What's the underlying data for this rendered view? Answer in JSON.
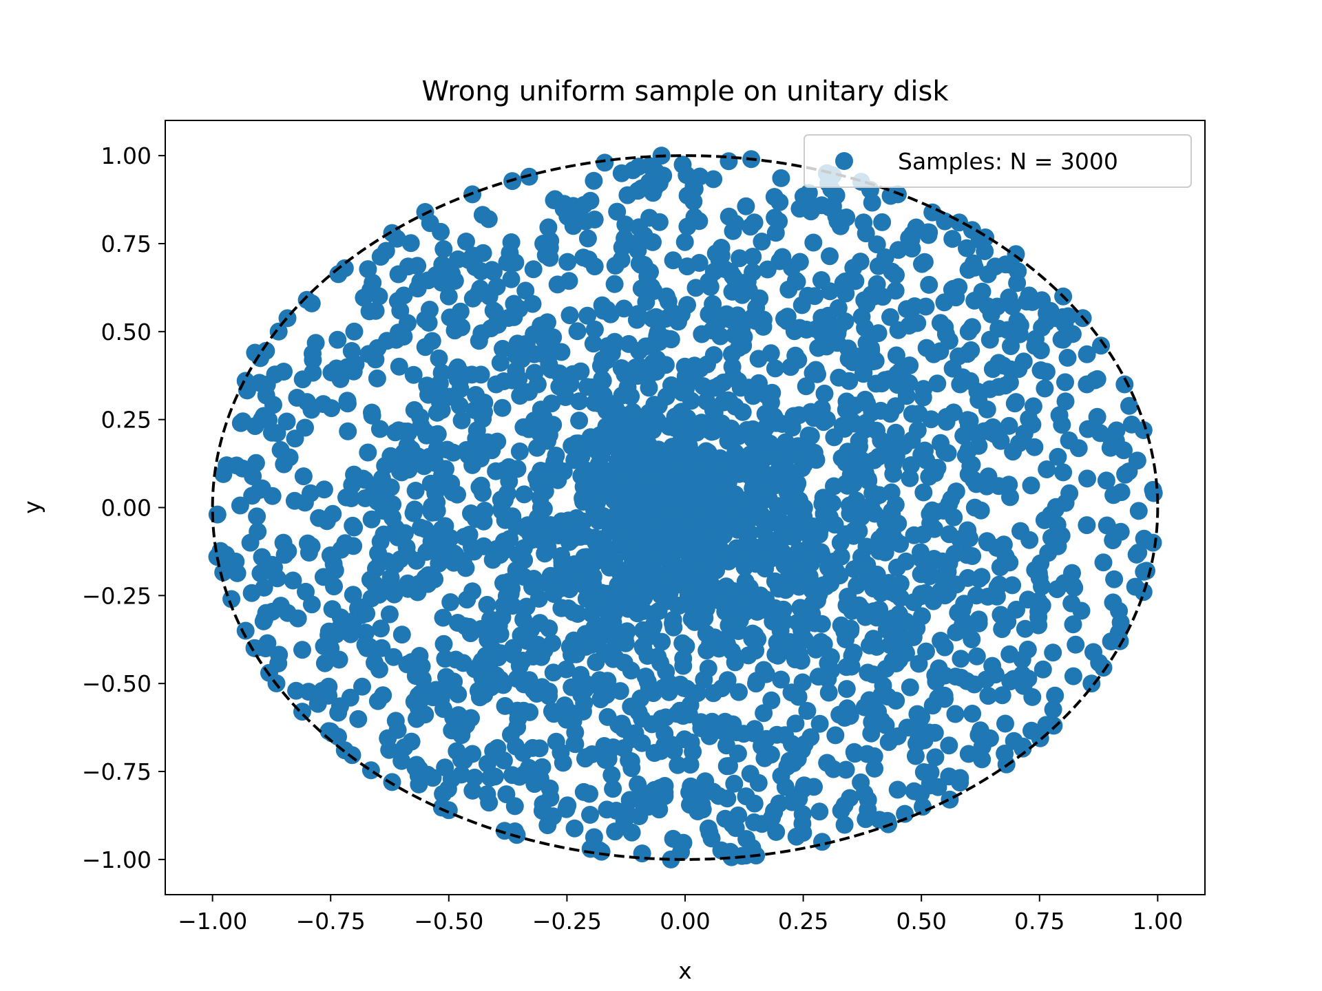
{
  "chart_data": {
    "type": "scatter",
    "title": "Wrong uniform sample on unitary disk",
    "xlabel": "x",
    "ylabel": "y",
    "xlim": [
      -1.1,
      1.1
    ],
    "ylim": [
      -1.1,
      1.1
    ],
    "xticks": [
      -1.0,
      -0.75,
      -0.5,
      -0.25,
      0.0,
      0.25,
      0.5,
      0.75,
      1.0
    ],
    "yticks": [
      -1.0,
      -0.75,
      -0.5,
      -0.25,
      0.0,
      0.25,
      0.5,
      0.75,
      1.0
    ],
    "xtick_labels": [
      "−1.00",
      "−0.75",
      "−0.50",
      "−0.25",
      "0.00",
      "0.25",
      "0.50",
      "0.75",
      "1.00"
    ],
    "ytick_labels": [
      "−1.00",
      "−0.75",
      "−0.50",
      "−0.25",
      "0.00",
      "0.25",
      "0.50",
      "0.75",
      "1.00"
    ],
    "grid": false,
    "legend": {
      "position": "upper right",
      "entries": [
        "Samples: N = 3000"
      ]
    },
    "reference_curve": {
      "shape": "circle",
      "center": [
        0,
        0
      ],
      "radius": 1.0,
      "style": "dashed",
      "color": "#000000"
    },
    "series": [
      {
        "name": "Samples: N = 3000",
        "n": 3000,
        "color": "#1f77b4",
        "distribution": "polar: radius uniform on [0,1], angle uniform on [0, 2π) (points concentrate near center)",
        "points": [
          [
            -0.99,
            -0.14
          ],
          [
            -0.96,
            -0.26
          ],
          [
            -0.93,
            0.36
          ],
          [
            -0.94,
            0.24
          ],
          [
            -0.97,
            0.12
          ],
          [
            -0.91,
            0.44
          ],
          [
            -0.86,
            0.5
          ],
          [
            -0.79,
            0.58
          ],
          [
            -0.72,
            0.68
          ],
          [
            -0.62,
            0.78
          ],
          [
            -0.55,
            0.84
          ],
          [
            -0.45,
            0.89
          ],
          [
            -0.33,
            0.94
          ],
          [
            -0.17,
            0.98
          ],
          [
            -0.05,
            1.0
          ],
          [
            0.14,
            0.99
          ],
          [
            0.3,
            0.95
          ],
          [
            0.45,
            0.89
          ],
          [
            0.58,
            0.81
          ],
          [
            0.7,
            0.72
          ],
          [
            0.8,
            0.6
          ],
          [
            0.88,
            0.46
          ],
          [
            0.93,
            0.35
          ],
          [
            0.97,
            0.22
          ],
          [
            0.99,
            0.05
          ],
          [
            0.99,
            -0.1
          ],
          [
            0.97,
            -0.24
          ],
          [
            0.92,
            -0.38
          ],
          [
            0.86,
            -0.5
          ],
          [
            0.78,
            -0.62
          ],
          [
            0.68,
            -0.73
          ],
          [
            0.56,
            -0.83
          ],
          [
            0.43,
            -0.9
          ],
          [
            0.29,
            -0.95
          ],
          [
            0.12,
            -0.99
          ],
          [
            -0.03,
            -1.0
          ],
          [
            -0.2,
            -0.97
          ],
          [
            -0.36,
            -0.92
          ],
          [
            -0.5,
            -0.86
          ],
          [
            -0.62,
            -0.78
          ],
          [
            -0.72,
            -0.69
          ],
          [
            -0.81,
            -0.58
          ],
          [
            -0.88,
            -0.47
          ],
          [
            -0.93,
            -0.35
          ],
          [
            -0.9,
            0.05
          ],
          [
            -0.85,
            -0.1
          ],
          [
            -0.8,
            0.3
          ],
          [
            -0.75,
            -0.4
          ],
          [
            -0.7,
            0.5
          ],
          [
            -0.65,
            -0.55
          ],
          [
            -0.6,
            0.1
          ],
          [
            -0.55,
            -0.2
          ],
          [
            -0.5,
            0.6
          ],
          [
            -0.45,
            -0.7
          ],
          [
            -0.4,
            0.35
          ],
          [
            -0.35,
            -0.45
          ],
          [
            -0.3,
            0.75
          ],
          [
            -0.25,
            -0.85
          ],
          [
            -0.2,
            0.2
          ],
          [
            -0.15,
            -0.3
          ],
          [
            -0.1,
            0.55
          ],
          [
            -0.05,
            -0.6
          ],
          [
            0.0,
            0.1
          ],
          [
            0.05,
            -0.15
          ],
          [
            0.1,
            0.4
          ],
          [
            0.15,
            -0.5
          ],
          [
            0.2,
            0.7
          ],
          [
            0.25,
            -0.8
          ],
          [
            0.3,
            0.25
          ],
          [
            0.35,
            -0.35
          ],
          [
            0.4,
            0.6
          ],
          [
            0.45,
            -0.65
          ],
          [
            0.5,
            0.15
          ],
          [
            0.55,
            -0.25
          ],
          [
            0.6,
            0.5
          ],
          [
            0.65,
            -0.45
          ],
          [
            0.7,
            0.3
          ],
          [
            0.75,
            -0.2
          ],
          [
            0.8,
            0.1
          ],
          [
            0.85,
            -0.05
          ],
          [
            0.9,
            0.2
          ],
          [
            0.85,
            0.35
          ],
          [
            0.6,
            -0.7
          ],
          [
            -0.6,
            -0.72
          ],
          [
            -0.1,
            0.9
          ],
          [
            0.1,
            -0.9
          ],
          [
            0.0,
            0.0
          ],
          [
            0.05,
            0.05
          ],
          [
            -0.05,
            -0.05
          ],
          [
            0.08,
            -0.02
          ],
          [
            -0.08,
            0.03
          ],
          [
            0.12,
            0.12
          ],
          [
            -0.12,
            -0.1
          ],
          [
            0.15,
            0.0
          ],
          [
            -0.15,
            0.02
          ],
          [
            0.0,
            0.15
          ],
          [
            0.02,
            -0.16
          ],
          [
            0.2,
            -0.05
          ],
          [
            -0.2,
            0.06
          ],
          [
            0.06,
            0.22
          ],
          [
            -0.04,
            -0.24
          ]
        ]
      }
    ]
  }
}
